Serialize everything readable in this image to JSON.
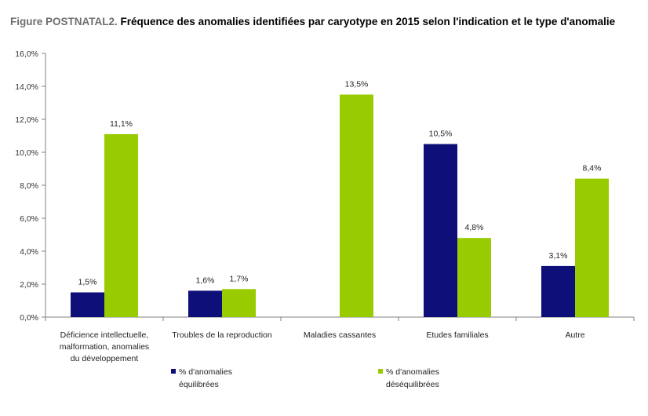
{
  "figure": {
    "prefix": "Figure POSTNATAL2.",
    "title": "Fréquence des anomalies identifiées par caryotype en 2015 selon l'indication et le type d'anomalie"
  },
  "chart_data": {
    "type": "bar",
    "categories": [
      [
        "Déficience intellectuelle,",
        "malformation,  anomalies",
        "du développement"
      ],
      [
        "Troubles de la reproduction"
      ],
      [
        "Maladies cassantes"
      ],
      [
        "Etudes familiales"
      ],
      [
        "Autre"
      ]
    ],
    "series": [
      {
        "name": "% d'anomalies équilibrées",
        "legend_lines": [
          "% d'anomalies",
          "équilibrées"
        ],
        "color": "#0f0f7a",
        "values": [
          1.5,
          1.6,
          null,
          10.5,
          3.1
        ],
        "labels": [
          "1,5%",
          "1,6%",
          "",
          "10,5%",
          "3,1%"
        ]
      },
      {
        "name": "% d'anomalies déséquilibrées",
        "legend_lines": [
          "% d'anomalies",
          "déséquilibrées"
        ],
        "color": "#99cc00",
        "values": [
          11.1,
          1.7,
          13.5,
          4.8,
          8.4
        ],
        "labels": [
          "11,1%",
          "1,7%",
          "13,5%",
          "4,8%",
          "8,4%"
        ]
      }
    ],
    "ylim": [
      0,
      16
    ],
    "yticks": [
      0,
      2,
      4,
      6,
      8,
      10,
      12,
      14,
      16
    ],
    "ytick_labels": [
      "0,0%",
      "2,0%",
      "4,0%",
      "6,0%",
      "8,0%",
      "10,0%",
      "12,0%",
      "14,0%",
      "16,0%"
    ],
    "grid": false,
    "legend_position": "bottom"
  }
}
